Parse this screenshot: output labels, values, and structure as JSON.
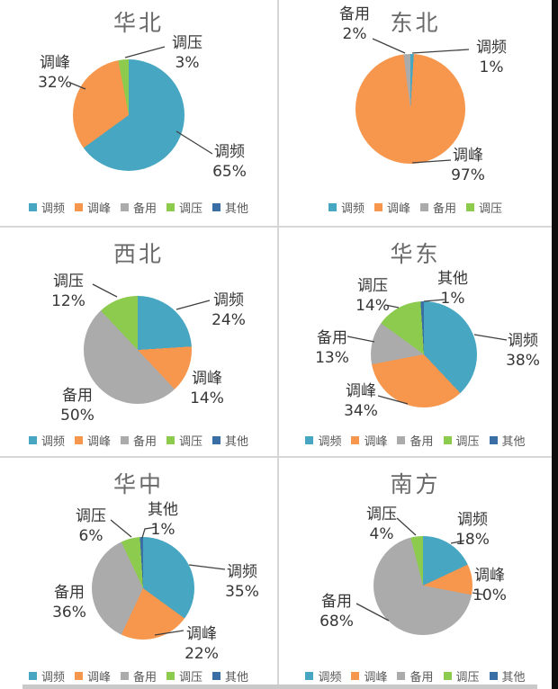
{
  "unit": "%",
  "colors": {
    "调频": "#47A6C2",
    "调峰": "#F7964D",
    "备用": "#ABABAB",
    "调压": "#8CCB4D",
    "其他": "#3A6FA5"
  },
  "chart_data": [
    {
      "type": "pie",
      "title": "华北",
      "slices": [
        {
          "label": "调频",
          "pct": 65
        },
        {
          "label": "调峰",
          "pct": 32
        },
        {
          "label": "调压",
          "pct": 3
        }
      ],
      "legend": [
        "调频",
        "调峰",
        "备用",
        "调压",
        "其他"
      ]
    },
    {
      "type": "pie",
      "title": "东北",
      "slices": [
        {
          "label": "调频",
          "pct": 1
        },
        {
          "label": "调峰",
          "pct": 97
        },
        {
          "label": "备用",
          "pct": 2
        }
      ],
      "legend": [
        "调频",
        "调峰",
        "备用",
        "调压"
      ]
    },
    {
      "type": "pie",
      "title": "西北",
      "slices": [
        {
          "label": "调频",
          "pct": 24
        },
        {
          "label": "调峰",
          "pct": 14
        },
        {
          "label": "备用",
          "pct": 50
        },
        {
          "label": "调压",
          "pct": 12
        }
      ],
      "legend": [
        "调频",
        "调峰",
        "备用",
        "调压",
        "其他"
      ]
    },
    {
      "type": "pie",
      "title": "华东",
      "slices": [
        {
          "label": "调频",
          "pct": 38
        },
        {
          "label": "调峰",
          "pct": 34
        },
        {
          "label": "备用",
          "pct": 13
        },
        {
          "label": "调压",
          "pct": 14
        },
        {
          "label": "其他",
          "pct": 1
        }
      ],
      "legend": [
        "调频",
        "调峰",
        "备用",
        "调压",
        "其他"
      ]
    },
    {
      "type": "pie",
      "title": "华中",
      "slices": [
        {
          "label": "调频",
          "pct": 35
        },
        {
          "label": "调峰",
          "pct": 22
        },
        {
          "label": "备用",
          "pct": 36
        },
        {
          "label": "调压",
          "pct": 6
        },
        {
          "label": "其他",
          "pct": 1
        }
      ],
      "legend": [
        "调频",
        "调峰",
        "备用",
        "调压",
        "其他"
      ]
    },
    {
      "type": "pie",
      "title": "南方",
      "slices": [
        {
          "label": "调频",
          "pct": 18
        },
        {
          "label": "调峰",
          "pct": 10
        },
        {
          "label": "备用",
          "pct": 68
        },
        {
          "label": "调压",
          "pct": 4
        }
      ],
      "legend": [
        "调频",
        "调峰",
        "备用",
        "调压",
        "其他"
      ]
    }
  ]
}
